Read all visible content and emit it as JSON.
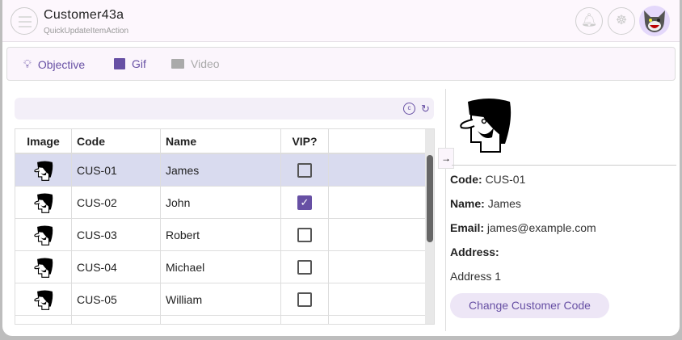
{
  "header": {
    "title": "Customer43a",
    "subtitle": "QuickUpdateItemAction"
  },
  "tabs": [
    {
      "label": "Objective",
      "icon": "lightbulb-icon"
    },
    {
      "label": "Gif",
      "icon": "image-icon"
    },
    {
      "label": "Video",
      "icon": "video-icon",
      "disabled": true
    }
  ],
  "table": {
    "columns": [
      "Image",
      "Code",
      "Name",
      "VIP?",
      ""
    ],
    "rows": [
      {
        "code": "CUS-01",
        "name": "James",
        "vip": false
      },
      {
        "code": "CUS-02",
        "name": "John",
        "vip": true
      },
      {
        "code": "CUS-03",
        "name": "Robert",
        "vip": false
      },
      {
        "code": "CUS-04",
        "name": "Michael",
        "vip": false
      },
      {
        "code": "CUS-05",
        "name": "William",
        "vip": false
      }
    ]
  },
  "detail": {
    "code_label": "Code:",
    "code": "CUS-01",
    "name_label": "Name:",
    "name": "James",
    "email_label": "Email:",
    "email": "james@example.com",
    "address_label": "Address:",
    "address": "Address 1",
    "button": "Change Customer Code"
  },
  "colors": {
    "accent": "#6750a4",
    "selected_row": "#d9dbef"
  }
}
